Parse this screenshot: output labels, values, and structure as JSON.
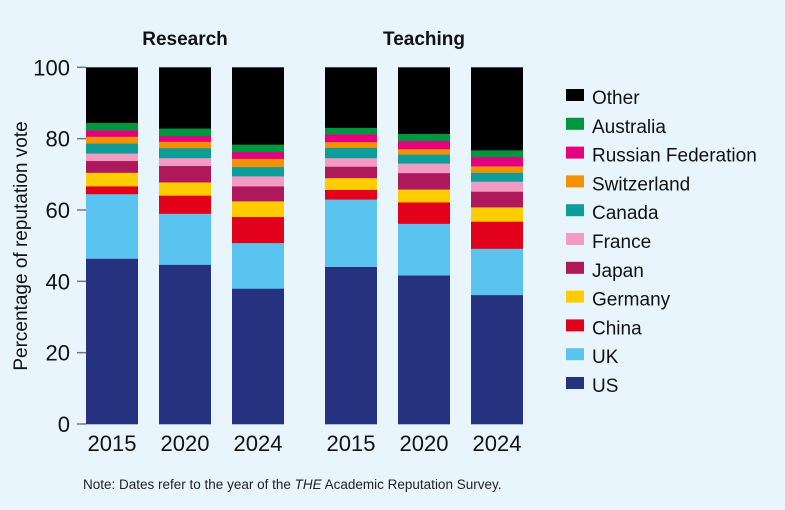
{
  "chart_data": {
    "type": "bar",
    "stacked": true,
    "ylabel": "Percentage of reputation vote",
    "ylim": [
      0,
      100
    ],
    "yticks": [
      0,
      20,
      40,
      60,
      80,
      100
    ],
    "groups": [
      {
        "title": "Research",
        "categories": [
          "2015",
          "2020",
          "2024"
        ]
      },
      {
        "title": "Teaching",
        "categories": [
          "2015",
          "2020",
          "2024"
        ]
      }
    ],
    "legend_position": "right",
    "grid": false,
    "series": [
      {
        "name": "US",
        "color": "#26317f",
        "values": [
          46.4,
          44.7,
          38.0,
          44.1,
          41.7,
          36.2
        ]
      },
      {
        "name": "UK",
        "color": "#5bc3ef",
        "values": [
          18.1,
          14.3,
          12.8,
          18.9,
          14.5,
          13.0
        ]
      },
      {
        "name": "China",
        "color": "#e2001a",
        "values": [
          2.2,
          5.1,
          7.3,
          2.7,
          6.0,
          7.6
        ]
      },
      {
        "name": "Germany",
        "color": "#ffcc00",
        "values": [
          3.8,
          3.7,
          4.4,
          3.3,
          3.6,
          4.0
        ]
      },
      {
        "name": "Japan",
        "color": "#b0185c",
        "values": [
          3.3,
          4.6,
          4.2,
          3.2,
          4.6,
          4.4
        ]
      },
      {
        "name": "France",
        "color": "#f29cc3",
        "values": [
          2.1,
          2.2,
          2.8,
          2.4,
          2.7,
          2.8
        ]
      },
      {
        "name": "Canada",
        "color": "#0f9d9a",
        "values": [
          2.8,
          2.8,
          2.6,
          2.9,
          2.5,
          2.5
        ]
      },
      {
        "name": "Switzerland",
        "color": "#f39200",
        "values": [
          1.9,
          1.8,
          2.3,
          1.6,
          1.5,
          1.8
        ]
      },
      {
        "name": "Russian Federation",
        "color": "#e5007d",
        "values": [
          1.8,
          1.6,
          1.9,
          2.2,
          2.3,
          2.6
        ]
      },
      {
        "name": "Australia",
        "color": "#00963f",
        "values": [
          2.1,
          2.1,
          2.1,
          1.8,
          2.0,
          1.9
        ]
      },
      {
        "name": "Other",
        "color": "#000000",
        "values": [
          15.5,
          17.1,
          21.6,
          16.9,
          18.6,
          23.2
        ]
      }
    ]
  },
  "note": {
    "prefix": "Note: Dates refer to the year of the ",
    "italic": "THE",
    "suffix": " Academic Reputation Survey."
  }
}
